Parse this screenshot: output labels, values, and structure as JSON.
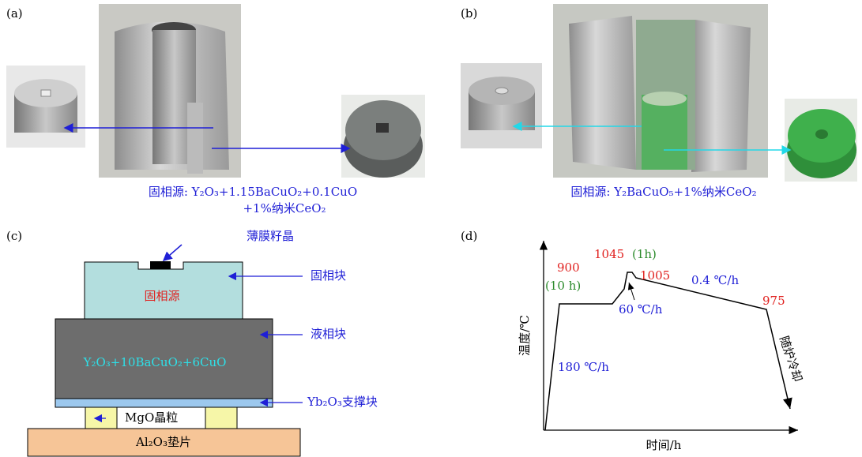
{
  "panel_a": {
    "label": "(a)",
    "caption_lines": [
      "固相源: Y₂O₃+1.15BaCuO₂+0.1CuO",
      "+1%纳米CeO₂"
    ]
  },
  "panel_b": {
    "label": "(b)",
    "caption": "固相源: Y₂BaCuO₅+1%纳米CeO₂"
  },
  "panel_c": {
    "label": "(c)",
    "seed": "薄膜籽晶",
    "solid_source_text": "固相源",
    "solid_block": "固相块",
    "liquid_text": "Y₂O₃+10BaCuO₂+6CuO",
    "liquid_block": "液相块",
    "support_block": "Yb₂O₃支撑块",
    "mgo": "MgO晶粒",
    "pad": "Al₂O₃垫片"
  },
  "panel_d": {
    "label": "(d)",
    "y_axis": "温度/℃",
    "x_axis": "时间/h",
    "t900": "900",
    "hold10": "(10 h)",
    "t1045": "1045",
    "hold1": "(1h)",
    "t1005": "1005",
    "rate04": "0.4 ℃/h",
    "t975": "975",
    "rate60": "60 ℃/h",
    "rate180": "180 ℃/h",
    "furnace_cool": "随炉冷却"
  }
}
